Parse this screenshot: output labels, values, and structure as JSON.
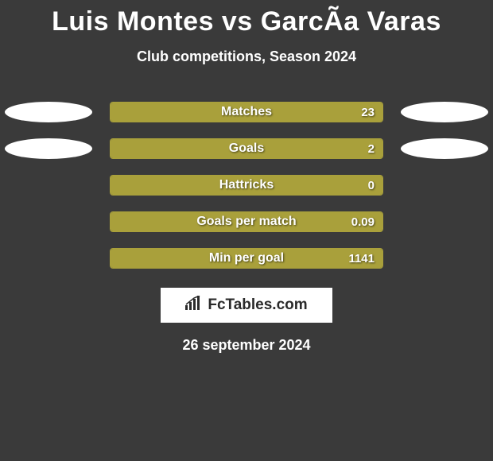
{
  "title": "Luis Montes vs GarcÃ­a Varas",
  "subtitle": "Club competitions, Season 2024",
  "bar_color": "#a9a03b",
  "bar_border_color": "#a9a03b",
  "background_color": "#3a3a3a",
  "ellipse_color": "#ffffff",
  "title_fontsize": 34,
  "subtitle_fontsize": 18,
  "label_fontsize": 16,
  "value_fontsize": 15,
  "rows": [
    {
      "label": "Matches",
      "value": "23",
      "fill_pct": 100,
      "show_left_ellipse": true,
      "show_right_ellipse": true
    },
    {
      "label": "Goals",
      "value": "2",
      "fill_pct": 100,
      "show_left_ellipse": true,
      "show_right_ellipse": true
    },
    {
      "label": "Hattricks",
      "value": "0",
      "fill_pct": 100,
      "show_left_ellipse": false,
      "show_right_ellipse": false
    },
    {
      "label": "Goals per match",
      "value": "0.09",
      "fill_pct": 100,
      "show_left_ellipse": false,
      "show_right_ellipse": false
    },
    {
      "label": "Min per goal",
      "value": "1141",
      "fill_pct": 100,
      "show_left_ellipse": false,
      "show_right_ellipse": false
    }
  ],
  "logo_text": "FcTables.com",
  "date": "26 september 2024"
}
